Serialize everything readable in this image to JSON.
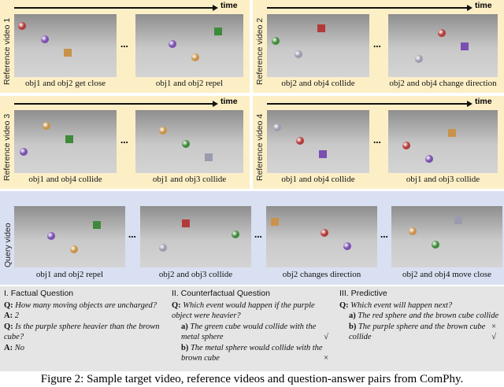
{
  "reference_videos": [
    {
      "label": "Reference video 1",
      "time": "time",
      "frames": [
        "obj1 and obj2 get close",
        "obj1 and obj2 repel"
      ],
      "ellipsis": "..."
    },
    {
      "label": "Reference video 2",
      "time": "time",
      "frames": [
        "obj2 and obj4 collide",
        "obj2 and obj4 change direction"
      ],
      "ellipsis": "..."
    },
    {
      "label": "Reference video 3",
      "time": "time",
      "frames": [
        "obj1 and obj4 collide",
        "obj1 and obj3 collide"
      ],
      "ellipsis": "..."
    },
    {
      "label": "Reference video 4",
      "time": "time",
      "frames": [
        "obj1 and obj4 collide",
        "obj1 and obj3 collide"
      ],
      "ellipsis": "..."
    }
  ],
  "query_video": {
    "label": "Query video",
    "frames": [
      "obj1 and obj2 repel",
      "obj2 and obj3 collide",
      "obj2 changes direction",
      "obj2 and obj4 move close"
    ],
    "ellipsis": [
      "...",
      "...",
      "..."
    ]
  },
  "questions": [
    {
      "title": "I. Factual Question",
      "items": [
        {
          "prefix": "Q:",
          "text": "How many moving objects are uncharged?"
        },
        {
          "prefix": "A:",
          "text": "2"
        },
        {
          "prefix": "Q:",
          "text": "Is the purple sphere heavier than the brown cube?"
        },
        {
          "prefix": "A:",
          "text": "No"
        }
      ]
    },
    {
      "title": "II. Counterfactual Question",
      "items": [
        {
          "prefix": "Q:",
          "text": "Which event would happen if the purple object were heavier?"
        }
      ],
      "options": [
        {
          "label": "a)",
          "text": "The green cube would collide with the metal sphere",
          "mark": "√"
        },
        {
          "label": "b)",
          "text": "The metal sphere would collide with the brown cube",
          "mark": "×"
        }
      ]
    },
    {
      "title": "III. Predictive",
      "items": [
        {
          "prefix": "Q:",
          "text": "Which event will happen next?"
        }
      ],
      "options": [
        {
          "label": "a)",
          "text": "The red sphere and the brown cube collide",
          "mark": "×"
        },
        {
          "label": "b)",
          "text": "The purple sphere and the brown cube collide",
          "mark": "√"
        }
      ]
    }
  ],
  "caption": "Figure 2: Sample target video, reference videos and question-answer pairs from ComPhy."
}
